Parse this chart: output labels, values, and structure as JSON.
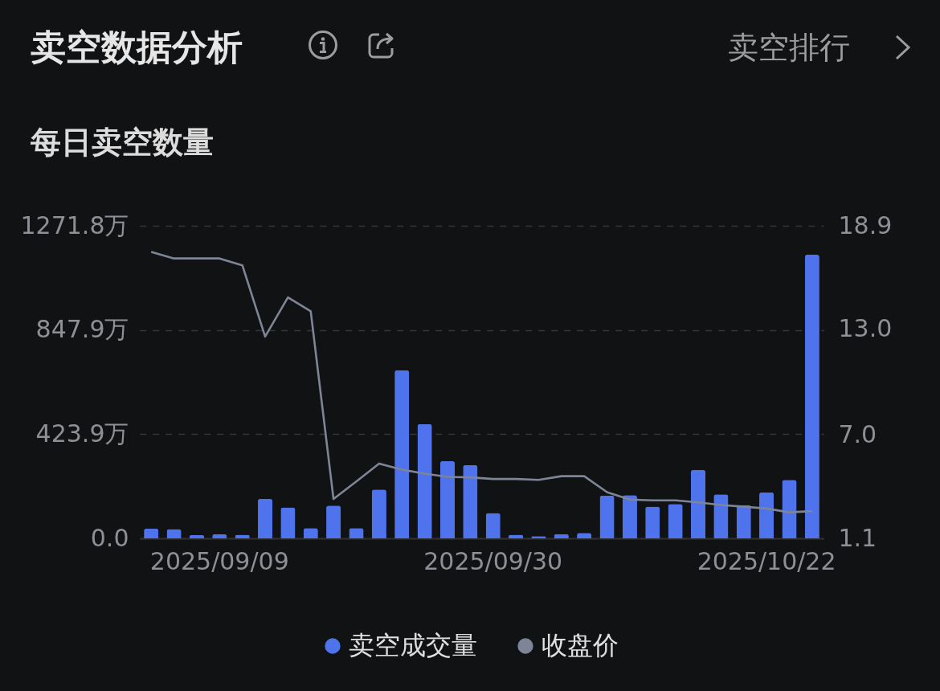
{
  "chart_data": {
    "type": "bar",
    "title": "卖空数据分析",
    "subtitle": "每日卖空数量",
    "annotations": [
      "卖空排行"
    ],
    "categories": [
      null,
      null,
      null,
      "2025/09/09",
      null,
      null,
      null,
      null,
      null,
      null,
      null,
      null,
      null,
      null,
      null,
      "2025/09/30",
      null,
      null,
      null,
      null,
      null,
      null,
      null,
      null,
      null,
      null,
      null,
      "2025/10/22",
      null,
      null
    ],
    "series": [
      {
        "name": "卖空成交量",
        "type": "bar",
        "color": "#4f73ec",
        "values": [
          40,
          38,
          13,
          16,
          15,
          161,
          126,
          42,
          133,
          42,
          199,
          684,
          465,
          315,
          298,
          103,
          15,
          9,
          17,
          22,
          174,
          176,
          129,
          140,
          279,
          179,
          136,
          187,
          238,
          1154
        ]
      },
      {
        "name": "收盘价",
        "type": "line",
        "axis": "y2",
        "color": "#7d8596",
        "values": [
          17.41,
          17.04,
          17.04,
          17.04,
          16.65,
          12.59,
          14.82,
          14.03,
          3.34,
          4.34,
          5.36,
          5.01,
          4.78,
          4.6,
          4.57,
          4.48,
          4.48,
          4.43,
          4.64,
          4.64,
          3.73,
          3.31,
          3.26,
          3.26,
          3.15,
          3.0,
          2.9,
          2.8,
          2.58,
          2.65
        ]
      }
    ],
    "ylim": [
      0,
      1271.8
    ],
    "yticks": [
      {
        "value": 0,
        "label": "0.0"
      },
      {
        "value": 423.9,
        "label": "423.9万"
      },
      {
        "value": 847.9,
        "label": "847.9万"
      },
      {
        "value": 1271.8,
        "label": "1271.8万"
      }
    ],
    "y2lim": [
      1.1,
      18.9
    ],
    "y2ticks": [
      1.1,
      {
        "value": 7,
        "label": "7.0"
      },
      {
        "value": 13,
        "label": "13.0"
      },
      18.9
    ],
    "grid": "y",
    "legend": "bottom"
  }
}
